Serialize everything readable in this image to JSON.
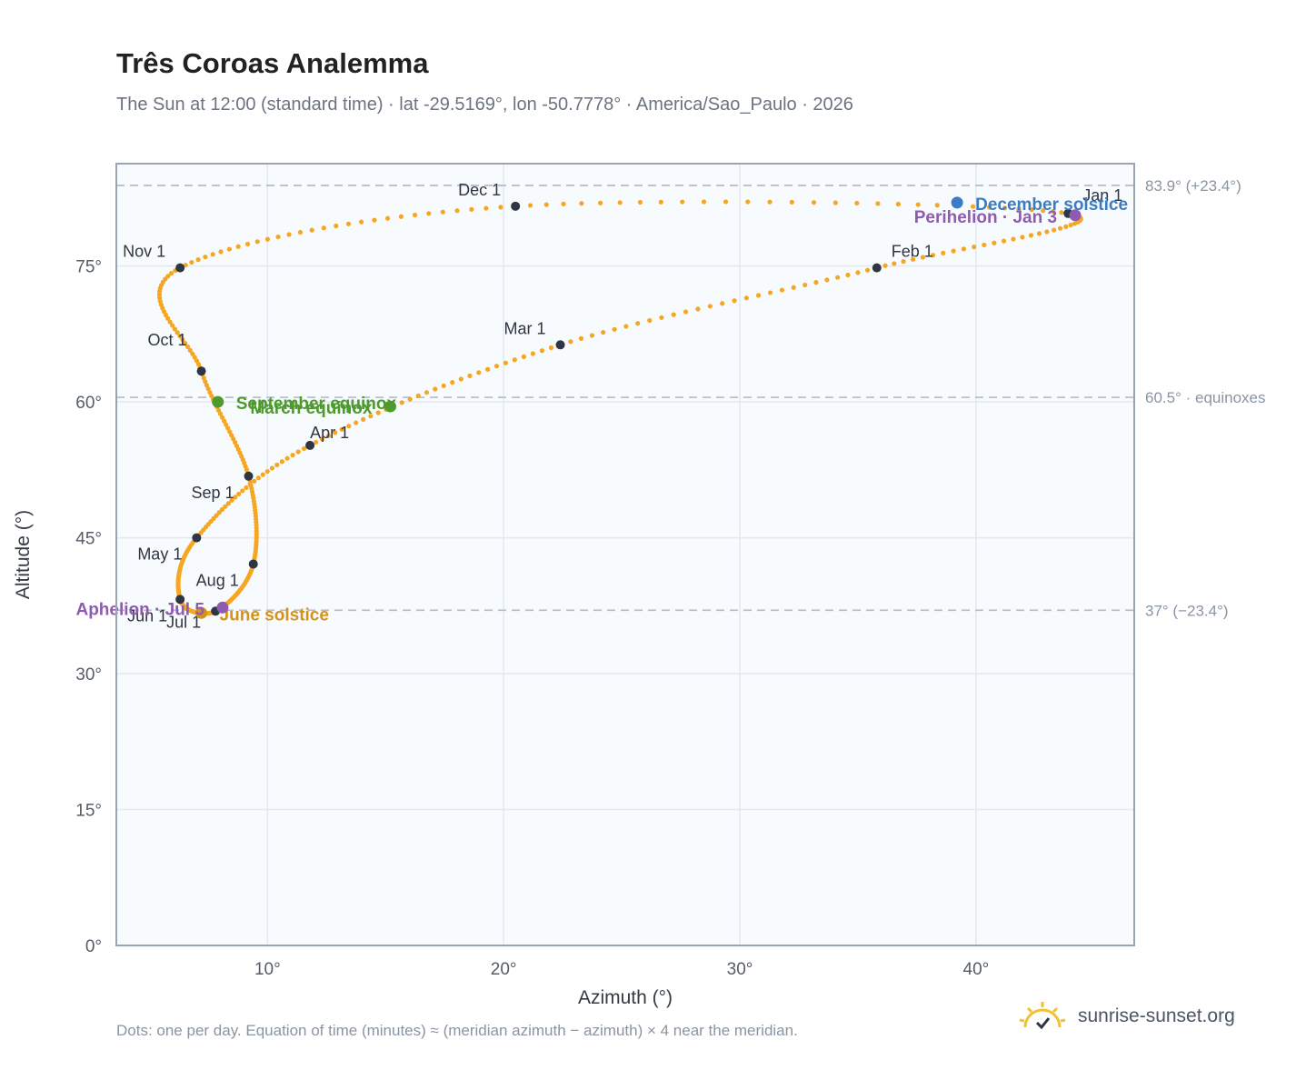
{
  "title": "Três Coroas Analemma",
  "subtitle": "The Sun at 12:00 (standard time) · lat -29.5169°, lon -50.7778° · America/Sao_Paulo · 2026",
  "footnote": "Dots: one per day. Equation of time (minutes) ≈ (meridian azimuth − azimuth) × 4 near the meridian.",
  "brand": {
    "name": "sunrise-sunset.org",
    "icon": "sun-logo-icon"
  },
  "colors": {
    "curve": "#f5a623",
    "month": "#2f3542",
    "solstice_dec": "#3b7dc4",
    "solstice_jun": "#d4921a",
    "equinox": "#4e9a2f",
    "apsis": "#8e5bb0",
    "ref_line": "#b8c0cc",
    "plot_bg": "#f8fbfe",
    "grid": "#e3e8ee"
  },
  "chart_data": {
    "type": "scatter",
    "xlabel": "Azimuth (°)",
    "ylabel": "Altitude (°)",
    "xlim": [
      3.6,
      46.7
    ],
    "ylim": [
      0,
      86.3
    ],
    "xticks": [
      10,
      20,
      30,
      40
    ],
    "xtick_labels": [
      "10°",
      "20°",
      "30°",
      "40°"
    ],
    "yticks": [
      0,
      15,
      30,
      45,
      60,
      75
    ],
    "ytick_labels": [
      "0°",
      "15°",
      "30°",
      "45°",
      "60°",
      "75°"
    ],
    "grid": true,
    "reference_lines": [
      {
        "y": 83.9,
        "label": "83.9° (+23.4°)"
      },
      {
        "y": 60.5,
        "label": "60.5° · equinoxes"
      },
      {
        "y": 37.0,
        "label": "37° (−23.4°)"
      }
    ],
    "month_points": [
      {
        "label": "Jan 1",
        "x": 43.9,
        "y": 80.8
      },
      {
        "label": "Feb 1",
        "x": 35.8,
        "y": 74.8
      },
      {
        "label": "Mar 1",
        "x": 22.4,
        "y": 66.3
      },
      {
        "label": "Apr 1",
        "x": 11.8,
        "y": 55.2
      },
      {
        "label": "May 1",
        "x": 7.0,
        "y": 45.0
      },
      {
        "label": "Jun 1",
        "x": 6.3,
        "y": 38.2
      },
      {
        "label": "Jul 1",
        "x": 7.8,
        "y": 36.9
      },
      {
        "label": "Aug 1",
        "x": 9.4,
        "y": 42.1
      },
      {
        "label": "Sep 1",
        "x": 9.2,
        "y": 51.8
      },
      {
        "label": "Oct 1",
        "x": 7.2,
        "y": 63.4
      },
      {
        "label": "Nov 1",
        "x": 6.3,
        "y": 74.8
      },
      {
        "label": "Dec 1",
        "x": 20.5,
        "y": 81.6
      }
    ],
    "events": [
      {
        "label": "December solstice",
        "x": 39.2,
        "y": 82.0,
        "kind": "solstice_dec"
      },
      {
        "label": "Perihelion · Jan 3",
        "x": 44.2,
        "y": 80.6,
        "kind": "apsis"
      },
      {
        "label": "September equinox",
        "x": 7.9,
        "y": 60.0,
        "kind": "equinox"
      },
      {
        "label": "March equinox",
        "x": 15.2,
        "y": 59.5,
        "kind": "equinox"
      },
      {
        "label": "June solstice",
        "x": 7.2,
        "y": 36.7,
        "kind": "solstice_jun"
      },
      {
        "label": "Aphelion · Jul 5",
        "x": 8.1,
        "y": 37.3,
        "kind": "apsis"
      }
    ]
  }
}
